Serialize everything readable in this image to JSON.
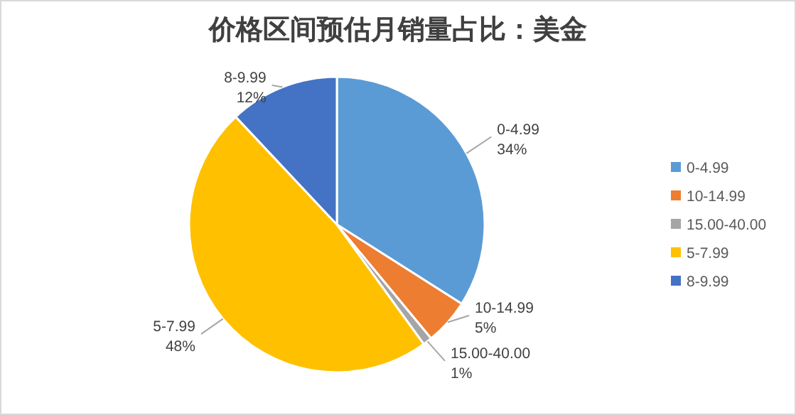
{
  "chart_data": {
    "type": "pie",
    "title": "价格区间预估月销量占比：美金",
    "categories": [
      "0-4.99",
      "10-14.99",
      "15.00-40.00",
      "5-7.99",
      "8-9.99"
    ],
    "values": [
      34,
      5,
      1,
      48,
      12
    ],
    "colors": [
      "#5b9bd5",
      "#ed7d31",
      "#a5a5a5",
      "#ffc000",
      "#4472c4"
    ],
    "value_labels": [
      "34%",
      "5%",
      "1%",
      "48%",
      "12%"
    ],
    "legend": "right"
  }
}
